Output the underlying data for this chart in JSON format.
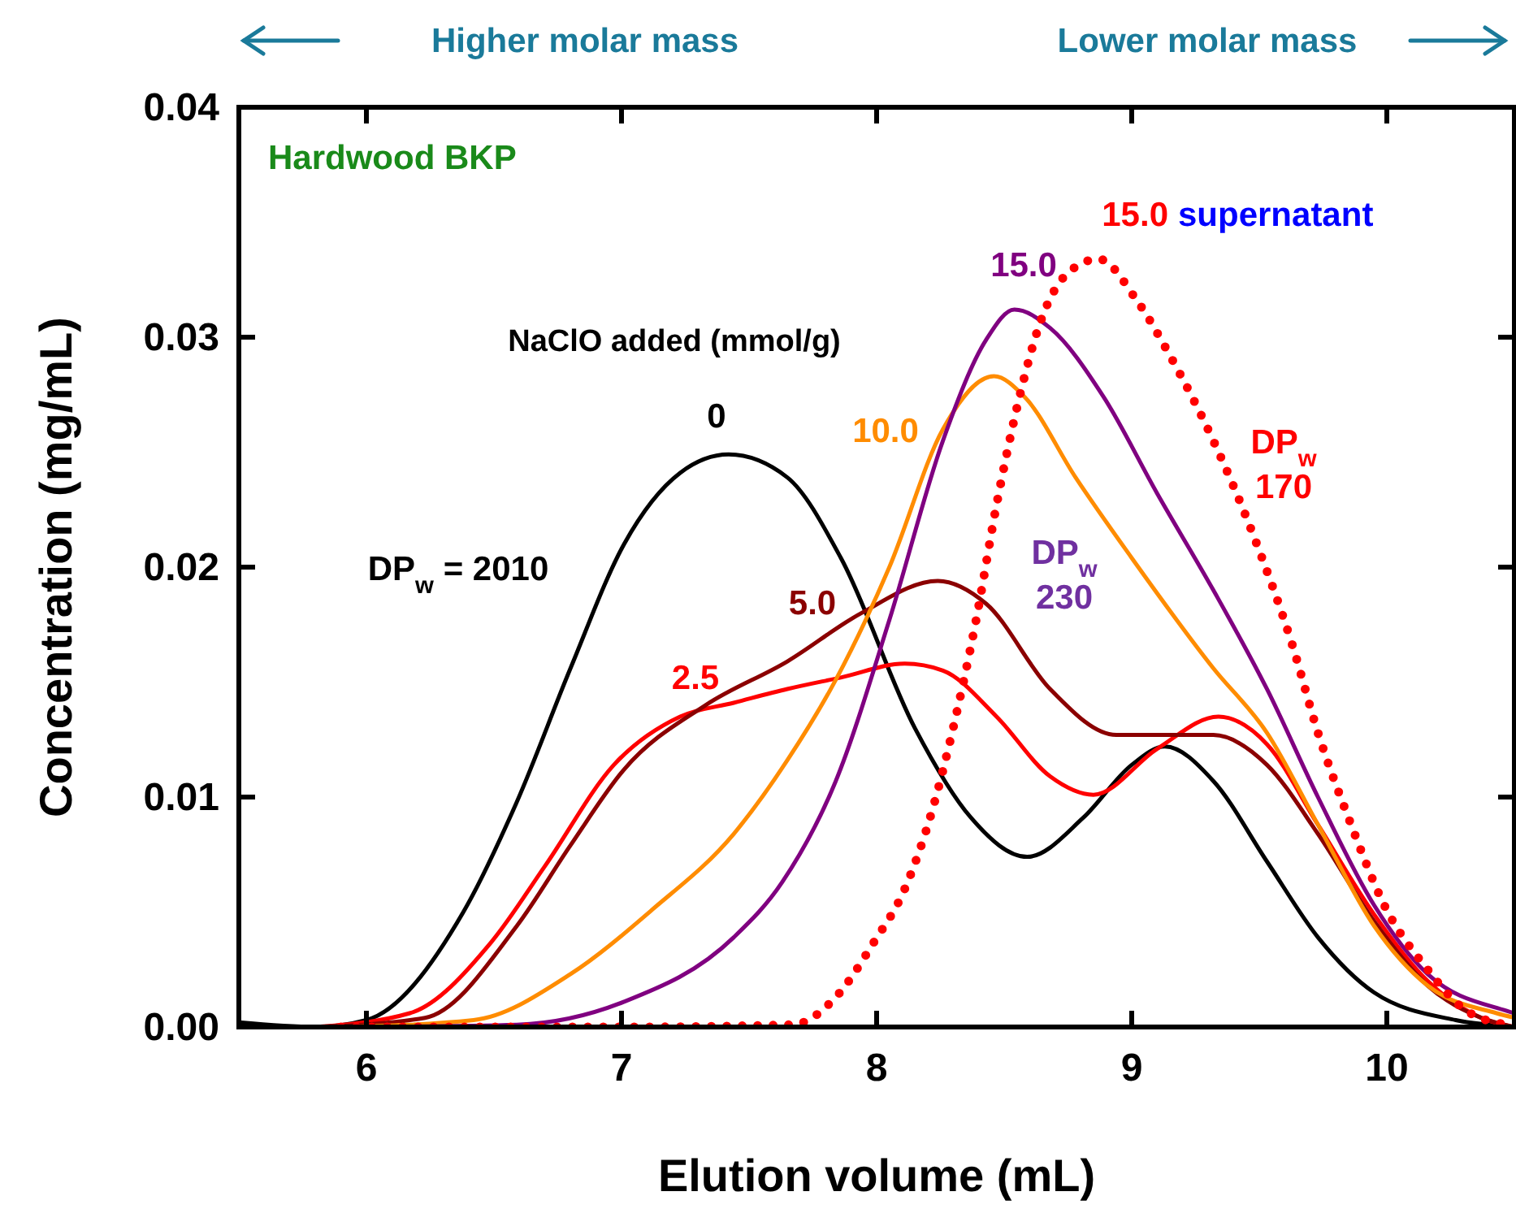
{
  "chart_data": {
    "type": "line",
    "xlabel": "Elution volume (mL)",
    "ylabel": "Concentration (mg/mL)",
    "legend_title": "NaClO added (mmol/g)",
    "xlim": [
      5.5,
      10.5
    ],
    "xticks": [
      6,
      7,
      8,
      9,
      10
    ],
    "ylim": [
      0,
      0.04
    ],
    "yticks": [
      {
        "value": 0,
        "label": "0.00"
      },
      0.01,
      0.02,
      0.03,
      0.04
    ],
    "grid": false,
    "line_style": "solid",
    "series": [
      {
        "name": "0",
        "color": "#000000",
        "x": [
          5.5,
          5.8,
          6.0,
          6.38,
          6.59,
          6.8,
          7.01,
          7.23,
          7.42,
          7.65,
          7.86,
          8.15,
          8.37,
          8.59,
          8.81,
          9.0,
          9.13,
          9.32,
          9.53,
          9.73,
          9.95,
          10.27,
          10.5
        ],
        "values": [
          0.0002,
          0.0,
          0.0003,
          0.005,
          0.0098,
          0.0156,
          0.021,
          0.0241,
          0.0249,
          0.0239,
          0.0204,
          0.013,
          0.0091,
          0.0074,
          0.0091,
          0.0114,
          0.0122,
          0.0107,
          0.0072,
          0.0039,
          0.0015,
          0.0003,
          0.0
        ]
      },
      {
        "name": "2.5",
        "color": "#ff0000",
        "x": [
          5.8,
          6.17,
          6.49,
          6.7,
          6.97,
          7.23,
          7.44,
          7.65,
          7.86,
          8.11,
          8.26,
          8.47,
          8.68,
          8.85,
          9.1,
          9.34,
          9.53,
          9.73,
          9.95,
          10.16,
          10.37,
          10.5
        ],
        "values": [
          0.0,
          0.0006,
          0.0037,
          0.007,
          0.0114,
          0.0135,
          0.0141,
          0.0147,
          0.0152,
          0.0158,
          0.0155,
          0.0135,
          0.0109,
          0.0101,
          0.0121,
          0.0135,
          0.0123,
          0.0088,
          0.0049,
          0.002,
          0.0004,
          0.0
        ]
      },
      {
        "name": "5.0",
        "color": "#8b0000",
        "x": [
          5.8,
          6.23,
          6.59,
          6.8,
          7.01,
          7.33,
          7.65,
          7.94,
          8.24,
          8.43,
          8.68,
          8.94,
          9.32,
          9.53,
          9.73,
          9.95,
          10.16,
          10.37,
          10.5
        ],
        "values": [
          0.0,
          0.0004,
          0.0044,
          0.0079,
          0.0112,
          0.014,
          0.0159,
          0.018,
          0.0194,
          0.0184,
          0.0147,
          0.0127,
          0.0127,
          0.0114,
          0.0084,
          0.0046,
          0.0018,
          0.0004,
          0.0
        ]
      },
      {
        "name": "10.0",
        "color": "#ff8c00",
        "x": [
          5.9,
          6.42,
          6.8,
          7.12,
          7.44,
          7.65,
          7.84,
          8.05,
          8.26,
          8.46,
          8.58,
          8.78,
          9.0,
          9.32,
          9.53,
          9.73,
          9.95,
          10.16,
          10.43,
          10.5
        ],
        "values": [
          0.0,
          0.0003,
          0.0023,
          0.0051,
          0.0084,
          0.0116,
          0.0151,
          0.02,
          0.026,
          0.0283,
          0.0274,
          0.0239,
          0.0204,
          0.0156,
          0.0128,
          0.0088,
          0.0044,
          0.0018,
          0.0006,
          0.0004
        ]
      },
      {
        "name": "15.0",
        "color": "#800080",
        "x": [
          6.0,
          6.59,
          7.01,
          7.44,
          7.63,
          7.84,
          8.05,
          8.26,
          8.43,
          8.54,
          8.68,
          8.89,
          9.1,
          9.32,
          9.53,
          9.73,
          9.95,
          10.16,
          10.47,
          10.5
        ],
        "values": [
          0.0,
          0.0001,
          0.0011,
          0.0039,
          0.0063,
          0.0107,
          0.0177,
          0.0255,
          0.0299,
          0.0312,
          0.0304,
          0.0274,
          0.0232,
          0.019,
          0.0147,
          0.01,
          0.0053,
          0.0023,
          0.0007,
          0.0006
        ]
      },
      {
        "name": "15.0",
        "color": "#ff0000",
        "line_style": "dotted",
        "x": [
          5.9,
          6.5,
          7.0,
          7.67,
          7.84,
          7.99,
          8.11,
          8.22,
          8.3,
          8.39,
          8.47,
          8.56,
          8.64,
          8.75,
          8.87,
          9.02,
          9.15,
          9.32,
          9.48,
          9.63,
          9.73,
          9.86,
          9.99,
          10.16,
          10.3,
          10.47
        ],
        "values": [
          0.0,
          0.0,
          0.0,
          0.0001,
          0.0013,
          0.0037,
          0.006,
          0.0095,
          0.013,
          0.0177,
          0.0227,
          0.0274,
          0.0306,
          0.0328,
          0.0334,
          0.0316,
          0.0292,
          0.0255,
          0.0213,
          0.0166,
          0.0128,
          0.0088,
          0.0053,
          0.0025,
          0.0008,
          0.0001
        ]
      }
    ],
    "annotations": [
      "Higher molar mass",
      "Lower molar mass",
      "Hardwood BKP",
      "DP$_{w}$ = 2010",
      "DP$_{w}$\n230",
      "DP$_{w}$\n170",
      "supernatant"
    ]
  }
}
